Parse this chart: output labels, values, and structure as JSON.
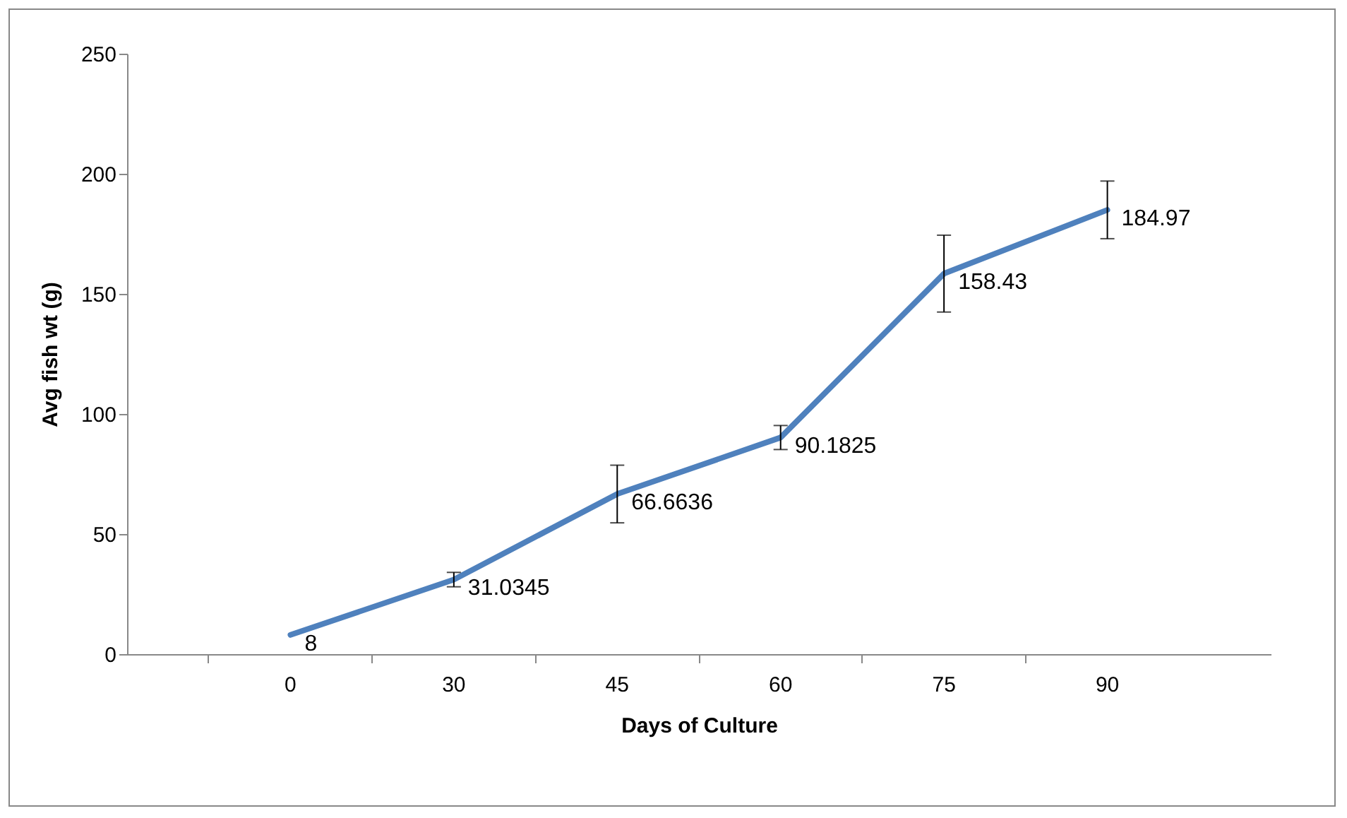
{
  "chart_data": {
    "type": "line",
    "xlabel": "Days of Culture",
    "ylabel": "Avg fish wt (g)",
    "categories": [
      "0",
      "30",
      "45",
      "60",
      "75",
      "90"
    ],
    "values": [
      8,
      31.0345,
      66.6636,
      90.1825,
      158.43,
      184.97
    ],
    "errors": [
      null,
      3,
      12,
      5,
      16,
      12
    ],
    "color": "#4f81bd",
    "ylim": [
      0,
      250
    ],
    "yticks": [
      0,
      50,
      100,
      150,
      200,
      250
    ],
    "data_labels": true,
    "grid": false,
    "marker": "none",
    "line_style": "solid"
  }
}
